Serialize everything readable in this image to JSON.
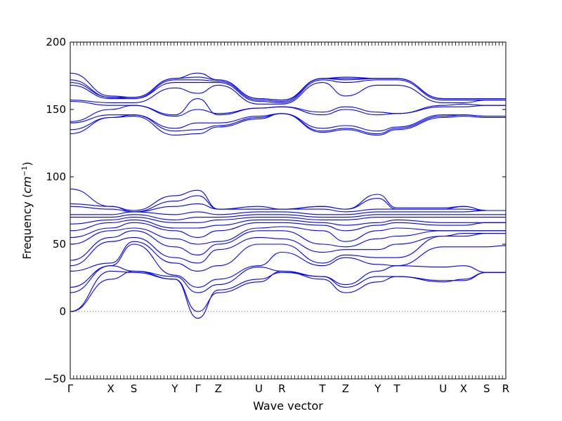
{
  "chart_data": {
    "type": "line",
    "title": "",
    "xlabel": "Wave vector",
    "ylabel_text": "Frequency (",
    "ylabel_unit": "cm",
    "ylabel_exp": "−1",
    "ylabel_close": ")",
    "ylim": [
      -50,
      200
    ],
    "yticks": [
      -50,
      0,
      50,
      100,
      150,
      200
    ],
    "ytick_labels": [
      "−50",
      "0",
      "50",
      "100",
      "150",
      "200"
    ],
    "xlim": [
      0,
      1
    ],
    "high_symmetry_points": [
      {
        "label": "Γ",
        "x": 0.0
      },
      {
        "label": "X",
        "x": 0.093
      },
      {
        "label": "S",
        "x": 0.146
      },
      {
        "label": "Y",
        "x": 0.24
      },
      {
        "label": "Γ",
        "x": 0.293
      },
      {
        "label": "Z",
        "x": 0.34
      },
      {
        "label": "U",
        "x": 0.433
      },
      {
        "label": "R",
        "x": 0.486
      },
      {
        "label": "T",
        "x": 0.579
      },
      {
        "label": "Z",
        "x": 0.632
      },
      {
        "label": "Y",
        "x": 0.706
      },
      {
        "label": "T",
        "x": 0.75
      },
      {
        "label": "U",
        "x": 0.856
      },
      {
        "label": "X",
        "x": 0.903
      },
      {
        "label": "S",
        "x": 0.956
      },
      {
        "label": "R",
        "x": 1.0
      }
    ],
    "zero_line": {
      "y": 0,
      "style": "dotted"
    },
    "line_color": "#0000ff",
    "grid": false,
    "series": [
      {
        "values": [
          0,
          24,
          30,
          24,
          0,
          14,
          22,
          30,
          24,
          14,
          22,
          26,
          22,
          24,
          29,
          29
        ]
      },
      {
        "values": [
          0,
          30,
          29,
          24,
          -5,
          16,
          24,
          29,
          26,
          18,
          26,
          26,
          23,
          23,
          29,
          29
        ]
      },
      {
        "values": [
          14,
          34,
          30,
          26,
          14,
          20,
          33,
          30,
          26,
          20,
          30,
          34,
          33,
          34,
          29,
          29
        ]
      },
      {
        "values": [
          18,
          34,
          50,
          27,
          18,
          24,
          34,
          44,
          34,
          40,
          35,
          34,
          48,
          48,
          48,
          49
        ]
      },
      {
        "values": [
          30,
          36,
          52,
          36,
          30,
          34,
          50,
          50,
          36,
          42,
          40,
          40,
          56,
          56,
          58,
          58
        ]
      },
      {
        "values": [
          34,
          52,
          55,
          40,
          36,
          46,
          55,
          54,
          44,
          46,
          46,
          50,
          56,
          58,
          58,
          58
        ]
      },
      {
        "values": [
          38,
          55,
          60,
          48,
          42,
          50,
          60,
          60,
          50,
          48,
          54,
          56,
          60,
          60,
          60,
          60
        ]
      },
      {
        "values": [
          50,
          60,
          62,
          54,
          50,
          52,
          62,
          63,
          60,
          52,
          60,
          62,
          60,
          60,
          60,
          60
        ]
      },
      {
        "values": [
          55,
          62,
          66,
          60,
          55,
          60,
          66,
          66,
          64,
          60,
          64,
          66,
          64,
          64,
          66,
          66
        ]
      },
      {
        "values": [
          60,
          66,
          68,
          62,
          62,
          64,
          68,
          68,
          66,
          64,
          66,
          68,
          66,
          66,
          66,
          66
        ]
      },
      {
        "values": [
          65,
          68,
          70,
          66,
          66,
          68,
          70,
          70,
          68,
          68,
          70,
          70,
          70,
          70,
          70,
          70
        ]
      },
      {
        "values": [
          70,
          70,
          72,
          68,
          70,
          70,
          72,
          72,
          70,
          70,
          72,
          72,
          72,
          72,
          72,
          72
        ]
      },
      {
        "values": [
          72,
          72,
          74,
          72,
          74,
          72,
          74,
          74,
          72,
          72,
          74,
          74,
          74,
          74,
          75,
          75
        ]
      },
      {
        "values": [
          78,
          76,
          74,
          78,
          80,
          76,
          76,
          76,
          76,
          74,
          76,
          76,
          76,
          76,
          75,
          75
        ]
      },
      {
        "values": [
          80,
          78,
          74,
          82,
          86,
          76,
          76,
          76,
          78,
          76,
          84,
          76,
          76,
          78,
          75,
          75
        ]
      },
      {
        "values": [
          91,
          78,
          75,
          86,
          90,
          76,
          78,
          76,
          78,
          76,
          87,
          77,
          77,
          78,
          75,
          75
        ]
      },
      {
        "values": [
          132,
          144,
          145,
          131,
          132,
          137,
          143,
          147,
          133,
          135,
          131,
          135,
          144,
          145,
          144,
          144
        ]
      },
      {
        "values": [
          135,
          144,
          146,
          134,
          135,
          138,
          144,
          147,
          134,
          136,
          132,
          136,
          145,
          146,
          145,
          145
        ]
      },
      {
        "values": [
          140,
          146,
          146,
          136,
          140,
          140,
          145,
          147,
          136,
          138,
          134,
          137,
          146,
          146,
          145,
          145
        ]
      },
      {
        "values": [
          141,
          150,
          153,
          145,
          150,
          147,
          151,
          152,
          146,
          150,
          146,
          147,
          152,
          152,
          153,
          153
        ]
      },
      {
        "values": [
          156,
          153,
          153,
          146,
          158,
          146,
          151,
          152,
          148,
          152,
          148,
          147,
          153,
          154,
          153,
          153
        ]
      },
      {
        "values": [
          157,
          155,
          155,
          166,
          162,
          168,
          154,
          154,
          170,
          160,
          168,
          168,
          155,
          155,
          157,
          157
        ]
      },
      {
        "values": [
          168,
          158,
          158,
          170,
          170,
          170,
          156,
          155,
          172,
          170,
          172,
          172,
          157,
          157,
          157,
          157
        ]
      },
      {
        "values": [
          170,
          159,
          158,
          172,
          172,
          171,
          157,
          156,
          173,
          172,
          173,
          173,
          158,
          158,
          158,
          158
        ]
      },
      {
        "values": [
          172,
          159,
          159,
          173,
          174,
          172,
          158,
          157,
          173,
          173,
          173,
          173,
          158,
          158,
          158,
          158
        ]
      },
      {
        "values": [
          177,
          160,
          159,
          173,
          177,
          172,
          158,
          157,
          173,
          174,
          173,
          173,
          158,
          158,
          158,
          158
        ]
      }
    ]
  }
}
